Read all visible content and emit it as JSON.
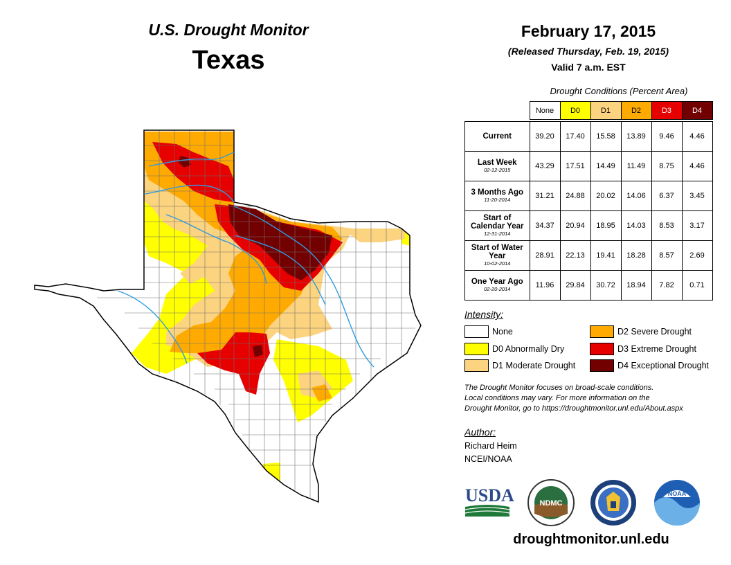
{
  "header": {
    "brand": "U.S. Drought Monitor",
    "state": "Texas",
    "date": "February 17, 2015",
    "released": "(Released Thursday, Feb. 19, 2015)",
    "valid": "Valid 7 a.m. EST"
  },
  "table": {
    "title": "Drought Conditions (Percent Area)",
    "columns": [
      "None",
      "D0",
      "D1",
      "D2",
      "D3",
      "D4"
    ],
    "column_colors": [
      "#ffffff",
      "#ffff00",
      "#fcd37f",
      "#ffaa00",
      "#e60000",
      "#730000"
    ],
    "rows": [
      {
        "label": "Current",
        "sublabel": "",
        "values": [
          "39.20",
          "17.40",
          "15.58",
          "13.89",
          "9.46",
          "4.46"
        ]
      },
      {
        "label": "Last Week",
        "sublabel": "02-12-2015",
        "values": [
          "43.29",
          "17.51",
          "14.49",
          "11.49",
          "8.75",
          "4.46"
        ]
      },
      {
        "label": "3 Months Ago",
        "sublabel": "11-20-2014",
        "values": [
          "31.21",
          "24.88",
          "20.02",
          "14.06",
          "6.37",
          "3.45"
        ]
      },
      {
        "label": "Start of Calendar Year",
        "sublabel": "12-31-2014",
        "values": [
          "34.37",
          "20.94",
          "18.95",
          "14.03",
          "8.53",
          "3.17"
        ]
      },
      {
        "label": "Start of Water Year",
        "sublabel": "10-02-2014",
        "values": [
          "28.91",
          "22.13",
          "19.41",
          "18.28",
          "8.57",
          "2.69"
        ]
      },
      {
        "label": "One Year Ago",
        "sublabel": "02-20-2014",
        "values": [
          "11.96",
          "29.84",
          "30.72",
          "18.94",
          "7.82",
          "0.71"
        ]
      }
    ]
  },
  "legend": {
    "title": "Intensity:",
    "items": [
      {
        "label": "None",
        "color": "#ffffff"
      },
      {
        "label": "D0 Abnormally Dry",
        "color": "#ffff00"
      },
      {
        "label": "D1 Moderate Drought",
        "color": "#fcd37f"
      },
      {
        "label": "D2 Severe Drought",
        "color": "#ffaa00"
      },
      {
        "label": "D3 Extreme Drought",
        "color": "#e60000"
      },
      {
        "label": "D4 Exceptional Drought",
        "color": "#730000"
      }
    ]
  },
  "note": {
    "line1": "The Drought Monitor focuses on broad-scale conditions.",
    "line2": "Local conditions may vary. For more information on the",
    "line3": "Drought Monitor, go to https://droughtmonitor.unl.edu/About.aspx"
  },
  "author": {
    "title": "Author:",
    "name": "Richard Heim",
    "org": "NCEI/NOAA"
  },
  "logos": {
    "usda": "USDA",
    "ndmc": "NDMC",
    "noaa": "NOAA"
  },
  "footer": {
    "url": "droughtmonitor.unl.edu"
  }
}
